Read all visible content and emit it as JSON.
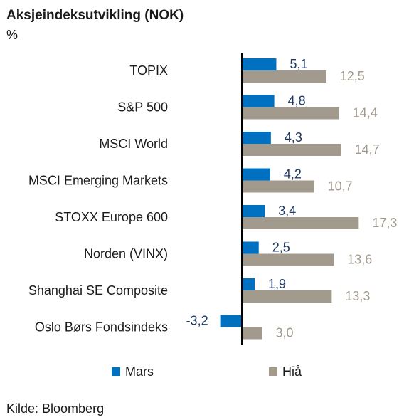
{
  "chart_data": {
    "type": "bar",
    "orientation": "horizontal",
    "title": "Aksjeindeksutvikling (NOK)",
    "unit": "%",
    "categories": [
      "TOPIX",
      "S&P 500",
      "MSCI World",
      "MSCI Emerging Markets",
      "STOXX Europe 600",
      "Norden (VINX)",
      "Shanghai SE Composite",
      "Oslo Børs Fondsindeks"
    ],
    "series": [
      {
        "name": "Mars",
        "color": "#0070c0",
        "values": [
          5.1,
          4.8,
          4.3,
          4.2,
          3.4,
          2.5,
          1.9,
          -3.2
        ],
        "labels": [
          "5,1",
          "4,8",
          "4,3",
          "4,2",
          "3,4",
          "2,5",
          "1,9",
          "-3,2"
        ]
      },
      {
        "name": "Hiå",
        "color": "#a39a8e",
        "values": [
          12.5,
          14.4,
          14.7,
          10.7,
          17.3,
          13.6,
          13.3,
          3.0
        ],
        "labels": [
          "12,5",
          "14,4",
          "14,7",
          "10,7",
          "17,3",
          "13,6",
          "13,3",
          "3,0"
        ]
      }
    ],
    "legend_position": "bottom",
    "grid": false,
    "source": "Kilde: Bloomberg"
  }
}
